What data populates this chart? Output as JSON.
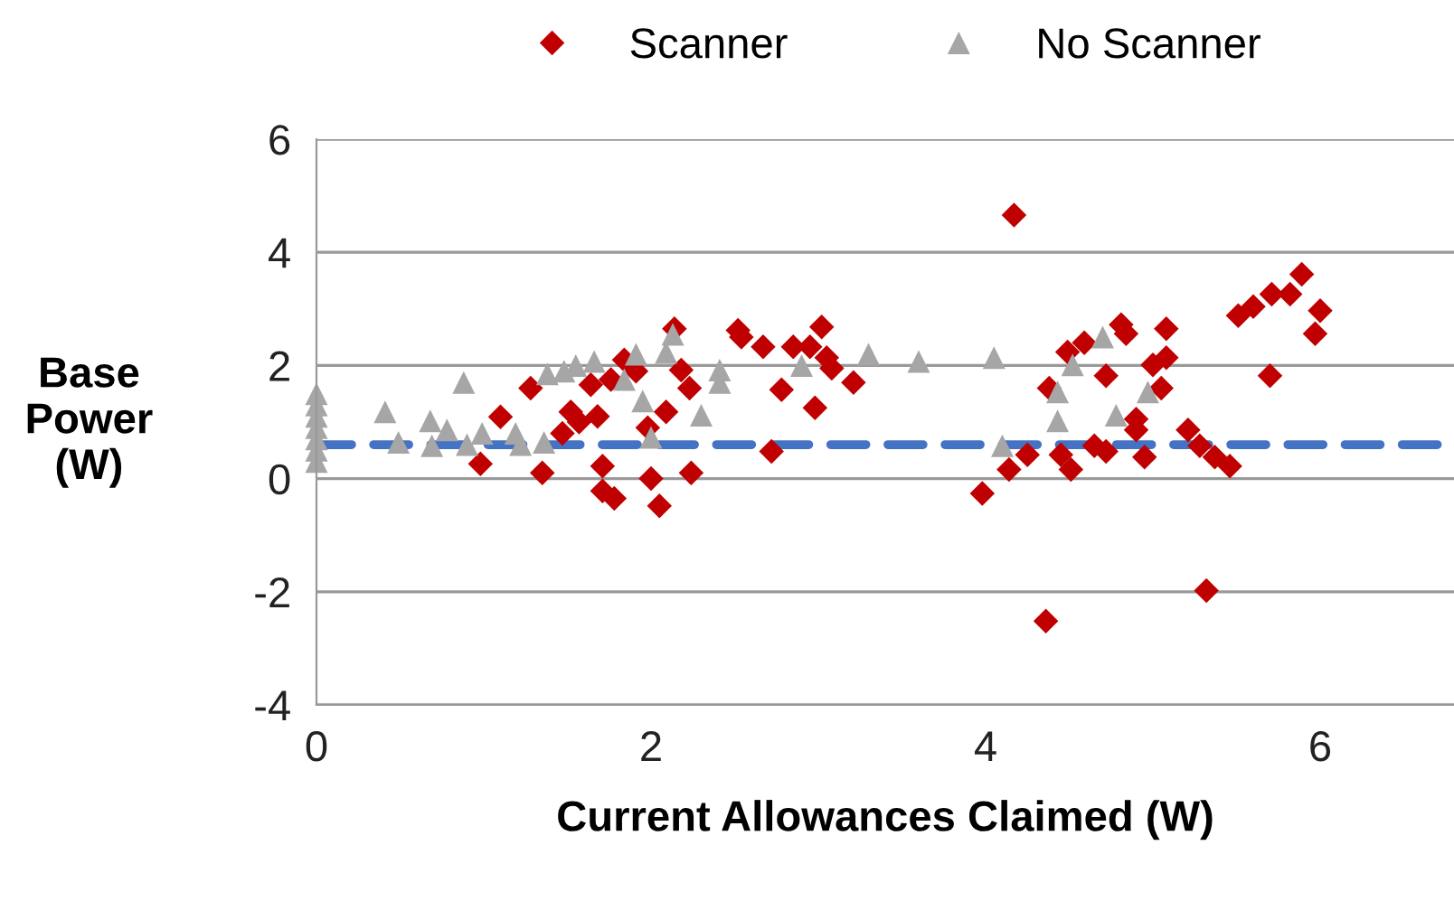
{
  "chart_data": {
    "type": "scatter",
    "xlabel": "Current Allowances Claimed (W)",
    "ylabel": "Base\nPower\n(W)",
    "xlim": [
      0,
      6.8
    ],
    "xticks": [
      0,
      2,
      4,
      6
    ],
    "ylim": [
      -4,
      6
    ],
    "yticks": [
      -4,
      -2,
      0,
      2,
      4,
      6
    ],
    "grid": "y",
    "legend": "top",
    "ref_lines": [
      {
        "axis": "y",
        "value": 0.6,
        "color": "#4472c4",
        "line_style": "dashed"
      }
    ],
    "series": [
      {
        "name": "Scanner",
        "color": "#c00000",
        "marker": "diamond",
        "x": [
          0.98,
          1.1,
          1.28,
          1.35,
          1.47,
          1.52,
          1.57,
          1.64,
          1.68,
          1.71,
          1.71,
          1.78,
          1.76,
          1.84,
          1.91,
          1.98,
          2.0,
          2.05,
          2.09,
          2.14,
          2.18,
          2.23,
          2.24,
          2.52,
          2.54,
          2.67,
          2.72,
          2.78,
          2.85,
          2.95,
          2.98,
          3.02,
          3.05,
          3.08,
          3.21,
          3.98,
          4.17,
          4.14,
          4.25,
          4.36,
          4.38,
          4.45,
          4.51,
          4.49,
          4.59,
          4.65,
          4.72,
          4.72,
          4.81,
          4.84,
          4.9,
          4.9,
          4.95,
          5.0,
          5.05,
          5.08,
          5.08,
          5.21,
          5.28,
          5.32,
          5.37,
          5.46,
          5.51,
          5.6,
          5.71,
          5.7,
          5.82,
          5.89,
          5.97,
          6.0
        ],
        "values": [
          0.26,
          1.09,
          1.6,
          0.1,
          0.8,
          1.18,
          1.0,
          1.66,
          1.1,
          0.22,
          -0.22,
          -0.35,
          1.75,
          2.1,
          1.9,
          0.9,
          0.0,
          -0.48,
          1.18,
          2.65,
          1.92,
          1.6,
          0.1,
          2.62,
          2.5,
          2.33,
          0.48,
          1.57,
          2.33,
          2.33,
          1.25,
          2.68,
          2.14,
          1.95,
          1.7,
          -0.26,
          4.66,
          0.16,
          0.42,
          -2.52,
          1.6,
          0.42,
          0.16,
          2.24,
          2.4,
          0.58,
          1.82,
          0.48,
          2.72,
          2.56,
          1.05,
          0.86,
          0.38,
          2.01,
          1.6,
          2.65,
          2.14,
          0.86,
          0.58,
          -1.98,
          0.38,
          0.22,
          2.88,
          3.04,
          3.26,
          1.82,
          3.26,
          3.61,
          2.56,
          2.97
        ]
      },
      {
        "name": "No Scanner",
        "color": "#a6a6a6",
        "marker": "triangle",
        "x": [
          0,
          0,
          0,
          0,
          0,
          0,
          0,
          0.41,
          0.49,
          0.68,
          0.69,
          0.78,
          0.88,
          0.9,
          0.99,
          1.19,
          1.22,
          1.36,
          1.38,
          1.48,
          1.55,
          1.66,
          1.84,
          1.91,
          1.95,
          2.0,
          2.09,
          2.13,
          2.3,
          2.41,
          2.41,
          2.9,
          3.3,
          3.6,
          4.05,
          4.1,
          4.43,
          4.43,
          4.52,
          4.7,
          4.78,
          4.97
        ],
        "values": [
          0.3,
          0.5,
          0.7,
          0.9,
          1.1,
          1.3,
          1.5,
          1.18,
          0.64,
          1.02,
          0.58,
          0.86,
          1.7,
          0.6,
          0.8,
          0.8,
          0.6,
          0.64,
          1.85,
          1.9,
          2.0,
          2.07,
          1.75,
          2.2,
          1.37,
          0.73,
          2.23,
          2.55,
          1.12,
          1.7,
          1.92,
          2.0,
          2.2,
          2.07,
          2.14,
          0.58,
          1.53,
          1.02,
          2.01,
          2.5,
          1.12,
          1.53
        ]
      }
    ]
  }
}
